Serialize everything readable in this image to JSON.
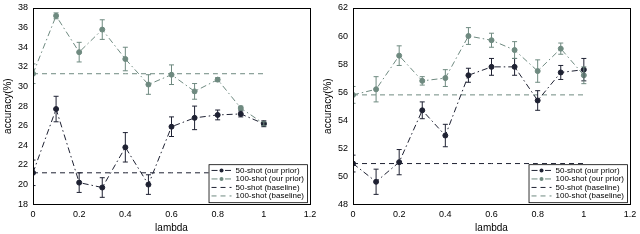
{
  "chart_data": [
    {
      "type": "line",
      "x_label": "lambda",
      "y_label": "accuracy(%)",
      "x": [
        0,
        0.1,
        0.2,
        0.3,
        0.4,
        0.5,
        0.6,
        0.7,
        0.8,
        0.9,
        1
      ],
      "xlim": [
        0,
        1.2
      ],
      "xticks": [
        0,
        0.2,
        0.4,
        0.6,
        0.8,
        1,
        1.2
      ],
      "ylim": [
        18,
        38
      ],
      "yticks": [
        18,
        20,
        22,
        24,
        26,
        28,
        30,
        32,
        34,
        36,
        38
      ],
      "grid": false,
      "legend": "lower right",
      "series": [
        {
          "name": "50-shot (our prior)",
          "color": "#1f2233",
          "marker": "circle",
          "line_style": "dashdot",
          "values": [
            21.2,
            27.7,
            20.2,
            19.7,
            23.8,
            20.0,
            25.9,
            26.8,
            27.1,
            27.2,
            26.2
          ],
          "errors": [
            1.3,
            1.3,
            1.0,
            1.0,
            1.5,
            1.0,
            1.0,
            1.2,
            0.5,
            0.3,
            0.3
          ]
        },
        {
          "name": "100-shot (our prior)",
          "color": "#6f8a80",
          "marker": "circle",
          "line_style": "dashdot",
          "values": [
            31.3,
            37.2,
            33.5,
            35.8,
            32.8,
            30.2,
            31.2,
            29.5,
            30.7,
            27.8,
            26.2
          ],
          "errors": [
            1.0,
            0.3,
            1.0,
            1.0,
            1.2,
            1.0,
            1.0,
            0.8,
            0.2,
            0.2,
            0.2
          ]
        },
        {
          "name": "50-shot (baseline)",
          "color": "#1f2233",
          "marker": "none",
          "line_style": "dashed",
          "values": [
            21.2,
            21.2,
            21.2,
            21.2,
            21.2,
            21.2,
            21.2,
            21.2,
            21.2,
            21.2,
            21.2
          ]
        },
        {
          "name": "100-shot (baseline)",
          "color": "#6f8a80",
          "marker": "none",
          "line_style": "dashed",
          "values": [
            31.3,
            31.3,
            31.3,
            31.3,
            31.3,
            31.3,
            31.3,
            31.3,
            31.3,
            31.3,
            31.3
          ]
        }
      ]
    },
    {
      "type": "line",
      "x_label": "lambda",
      "y_label": "accuracy(%)",
      "x": [
        0,
        0.1,
        0.2,
        0.3,
        0.4,
        0.5,
        0.6,
        0.7,
        0.8,
        0.9,
        1
      ],
      "xlim": [
        0,
        1.2
      ],
      "xticks": [
        0,
        0.2,
        0.4,
        0.6,
        0.8,
        1,
        1.2
      ],
      "ylim": [
        48,
        62
      ],
      "yticks": [
        48,
        50,
        52,
        54,
        56,
        58,
        60,
        62
      ],
      "grid": false,
      "legend": "lower right",
      "series": [
        {
          "name": "50-shot (our prior)",
          "color": "#1f2233",
          "marker": "circle",
          "line_style": "dashdot",
          "values": [
            50.9,
            49.6,
            51.0,
            54.7,
            52.9,
            57.2,
            57.8,
            57.8,
            55.4,
            57.4,
            57.6
          ],
          "errors": [
            0.6,
            0.9,
            0.9,
            0.6,
            0.8,
            0.5,
            0.6,
            0.6,
            0.7,
            0.5,
            0.8
          ]
        },
        {
          "name": "100-shot (our prior)",
          "color": "#6f8a80",
          "marker": "circle",
          "line_style": "dashdot",
          "values": [
            55.8,
            56.2,
            58.6,
            56.8,
            57.0,
            60.0,
            59.7,
            59.0,
            57.5,
            59.1,
            57.2
          ],
          "errors": [
            0.6,
            0.9,
            0.7,
            0.3,
            0.6,
            0.6,
            0.5,
            0.6,
            0.8,
            0.4,
            0.6
          ]
        },
        {
          "name": "50-shot (baseline)",
          "color": "#1f2233",
          "marker": "none",
          "line_style": "dashed",
          "values": [
            50.9,
            50.9,
            50.9,
            50.9,
            50.9,
            50.9,
            50.9,
            50.9,
            50.9,
            50.9,
            50.9
          ]
        },
        {
          "name": "100-shot (baseline)",
          "color": "#6f8a80",
          "marker": "none",
          "line_style": "dashed",
          "values": [
            55.8,
            55.8,
            55.8,
            55.8,
            55.8,
            55.8,
            55.8,
            55.8,
            55.8,
            55.8,
            55.8
          ]
        }
      ]
    }
  ]
}
